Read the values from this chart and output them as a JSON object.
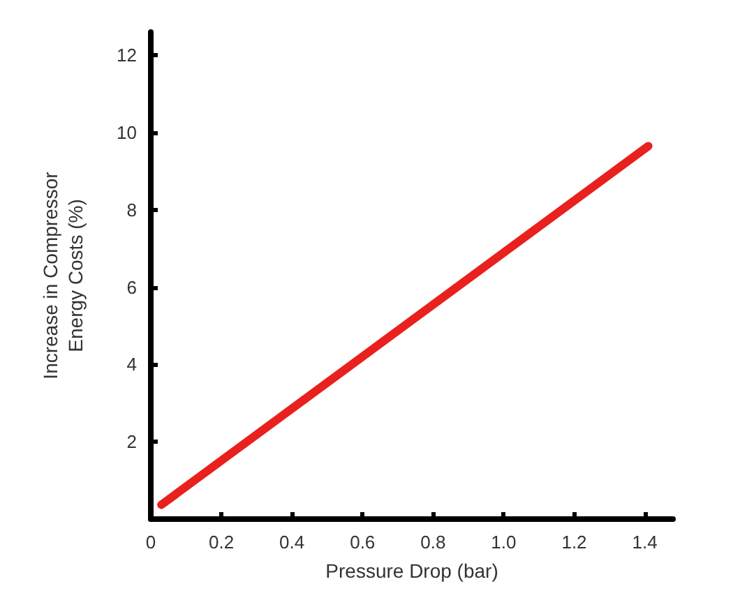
{
  "chart_data": {
    "type": "line",
    "xlabel": "Pressure Drop (bar)",
    "ylabel": "Increase in Compressor\nEnergy Costs (%)",
    "x": [
      0.03,
      1.41
    ],
    "series": [
      {
        "color": "#e8211e",
        "values": [
          0.37,
          9.65
        ]
      }
    ],
    "xlim": [
      0,
      1.48
    ],
    "xticks": [
      0,
      0.2,
      0.4,
      0.6,
      0.8,
      {
        "value": 1,
        "label": "1.0"
      },
      1.2,
      1.4
    ],
    "ylim": [
      0,
      12.6
    ],
    "yticks": [
      2,
      4,
      6,
      8,
      10,
      12
    ],
    "grid": false,
    "marker": "none",
    "line_style": "solid"
  }
}
